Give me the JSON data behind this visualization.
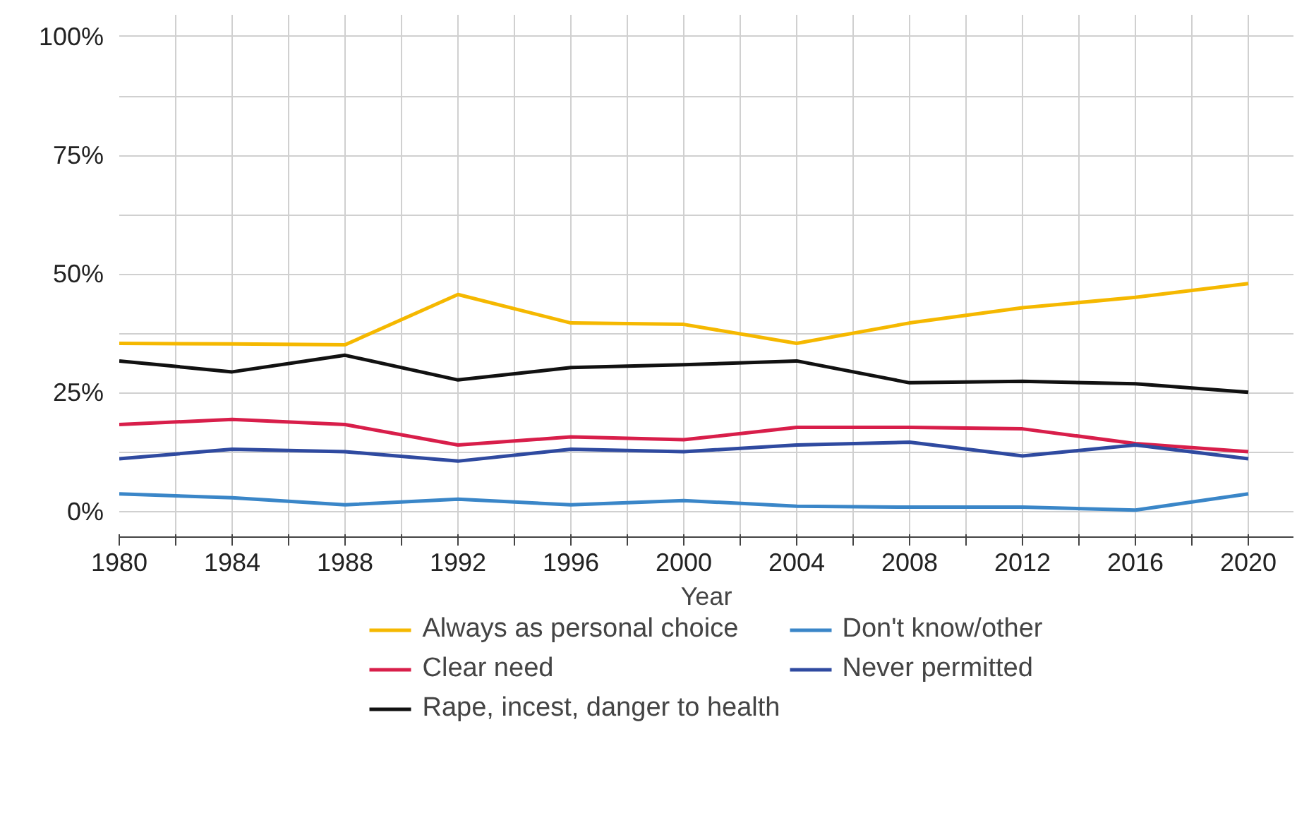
{
  "chart_data": {
    "type": "line",
    "xlabel": "Year",
    "x": [
      1980,
      1984,
      1988,
      1992,
      1996,
      2000,
      2004,
      2008,
      2012,
      2016,
      2020
    ],
    "series": [
      {
        "name": "Always as personal choice",
        "color": "#f5b800",
        "values": [
          35.4,
          35.3,
          35.1,
          45.7,
          39.7,
          39.4,
          35.4,
          39.7,
          42.9,
          45.1,
          48.0
        ]
      },
      {
        "name": "Don't know/other",
        "color": "#3a86c8",
        "values": [
          3.7,
          2.9,
          1.4,
          2.6,
          1.4,
          2.3,
          1.1,
          0.9,
          0.9,
          0.3,
          3.7
        ]
      },
      {
        "name": "Clear need",
        "color": "#d81e4a",
        "values": [
          18.3,
          19.4,
          18.3,
          14.0,
          15.7,
          15.1,
          17.7,
          17.7,
          17.4,
          14.3,
          12.6
        ]
      },
      {
        "name": "Never permitted",
        "color": "#2f4aa0",
        "values": [
          11.1,
          13.1,
          12.6,
          10.6,
          13.1,
          12.6,
          14.0,
          14.6,
          11.7,
          14.0,
          11.1
        ]
      },
      {
        "name": "Rape, incest, danger to health",
        "color": "#111111",
        "values": [
          31.7,
          29.4,
          32.9,
          27.7,
          30.3,
          30.9,
          31.7,
          27.1,
          27.4,
          26.9,
          25.1
        ]
      }
    ],
    "xlim": [
      1980,
      2021.6
    ],
    "ylim": [
      -5.4,
      104.6
    ],
    "xticks": [
      1980,
      {
        "value": 1982,
        "label": null
      },
      1984,
      {
        "value": 1986,
        "label": null
      },
      1988,
      {
        "value": 1990,
        "label": null
      },
      1992,
      {
        "value": 1994,
        "label": null
      },
      1996,
      {
        "value": 1998,
        "label": null
      },
      2000,
      {
        "value": 2002,
        "label": null
      },
      2004,
      {
        "value": 2006,
        "label": null
      },
      2008,
      {
        "value": 2010,
        "label": null
      },
      2012,
      {
        "value": 2014,
        "label": null
      },
      2016,
      {
        "value": 2018,
        "label": null
      },
      2020
    ],
    "yticks": [
      {
        "value": 0,
        "label": "0%"
      },
      {
        "value": 12.5,
        "label": null
      },
      {
        "value": 25,
        "label": "25%"
      },
      {
        "value": 37.5,
        "label": null
      },
      {
        "value": 50,
        "label": "50%"
      },
      {
        "value": 62.5,
        "label": null
      },
      {
        "value": 75,
        "label": "75%"
      },
      {
        "value": 87.5,
        "label": null
      },
      {
        "value": 100,
        "label": "100%"
      }
    ],
    "grid": true,
    "legend": "bottom",
    "marker": "none",
    "line_style": "solid"
  }
}
